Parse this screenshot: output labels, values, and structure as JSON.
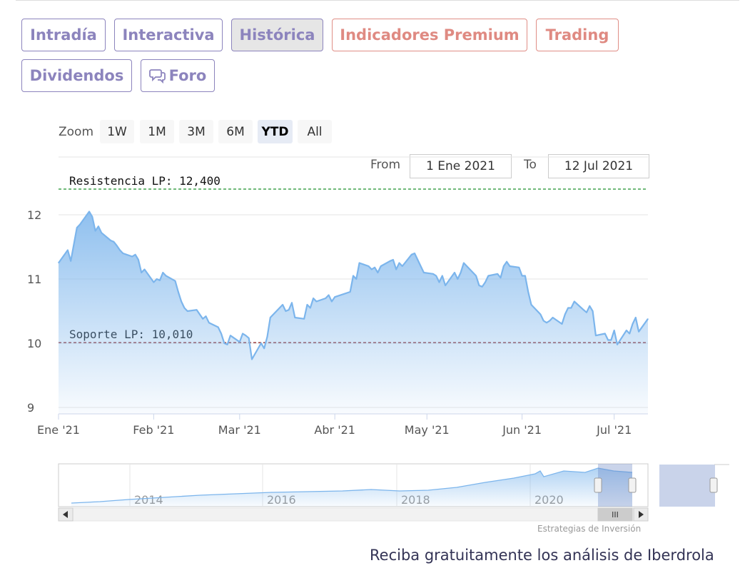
{
  "tabs": {
    "intradia": "Intradía",
    "interactiva": "Interactiva",
    "historica": "Histórica",
    "indicadores": "Indicadores Premium",
    "trading": "Trading",
    "dividendos": "Dividendos",
    "foro": "Foro"
  },
  "zoom": {
    "label": "Zoom",
    "buttons": [
      "1W",
      "1M",
      "3M",
      "6M",
      "YTD",
      "All"
    ],
    "selected": "YTD"
  },
  "range": {
    "from_label": "From",
    "from_value": "1 Ene 2021",
    "to_label": "To",
    "to_value": "12 Jul 2021"
  },
  "colors": {
    "accent_purple": "#8c84bd",
    "accent_salmon": "#df8a82",
    "series_line": "#7cb5ec",
    "resistance_line": "#1a8f2a",
    "support_line": "#8b1a1a"
  },
  "chart_data": {
    "type": "area",
    "xlabel": "",
    "ylabel": "",
    "yticks": [
      9,
      10,
      11,
      12
    ],
    "ylim": [
      8.9,
      12.9
    ],
    "xlim": [
      "2021-01-01",
      "2021-07-12"
    ],
    "xticks": [
      {
        "date": "2021-01-01",
        "label": "Ene '21"
      },
      {
        "date": "2021-02-01",
        "label": "Feb '21"
      },
      {
        "date": "2021-03-01",
        "label": "Mar '21"
      },
      {
        "date": "2021-04-01",
        "label": "Abr '21"
      },
      {
        "date": "2021-05-01",
        "label": "May '21"
      },
      {
        "date": "2021-06-01",
        "label": "Jun '21"
      },
      {
        "date": "2021-07-01",
        "label": "Jul '21"
      }
    ],
    "series": [
      {
        "points": [
          [
            "2021-01-01",
            11.25
          ],
          [
            "2021-01-04",
            11.45
          ],
          [
            "2021-01-05",
            11.28
          ],
          [
            "2021-01-07",
            11.8
          ],
          [
            "2021-01-08",
            11.85
          ],
          [
            "2021-01-11",
            12.05
          ],
          [
            "2021-01-12",
            11.97
          ],
          [
            "2021-01-13",
            11.75
          ],
          [
            "2021-01-14",
            11.82
          ],
          [
            "2021-01-15",
            11.72
          ],
          [
            "2021-01-18",
            11.6
          ],
          [
            "2021-01-19",
            11.58
          ],
          [
            "2021-01-20",
            11.52
          ],
          [
            "2021-01-21",
            11.45
          ],
          [
            "2021-01-22",
            11.4
          ],
          [
            "2021-01-25",
            11.35
          ],
          [
            "2021-01-26",
            11.38
          ],
          [
            "2021-01-27",
            11.3
          ],
          [
            "2021-01-28",
            11.1
          ],
          [
            "2021-01-29",
            11.15
          ],
          [
            "2021-02-01",
            10.95
          ],
          [
            "2021-02-02",
            11.0
          ],
          [
            "2021-02-03",
            10.98
          ],
          [
            "2021-02-04",
            11.1
          ],
          [
            "2021-02-05",
            11.05
          ],
          [
            "2021-02-08",
            10.97
          ],
          [
            "2021-02-09",
            10.8
          ],
          [
            "2021-02-10",
            10.65
          ],
          [
            "2021-02-11",
            10.55
          ],
          [
            "2021-02-12",
            10.5
          ],
          [
            "2021-02-15",
            10.52
          ],
          [
            "2021-02-16",
            10.45
          ],
          [
            "2021-02-17",
            10.38
          ],
          [
            "2021-02-18",
            10.42
          ],
          [
            "2021-02-19",
            10.32
          ],
          [
            "2021-02-22",
            10.25
          ],
          [
            "2021-02-23",
            10.15
          ],
          [
            "2021-02-24",
            10.0
          ],
          [
            "2021-02-25",
            9.98
          ],
          [
            "2021-02-26",
            10.12
          ],
          [
            "2021-03-01",
            10.02
          ],
          [
            "2021-03-02",
            10.15
          ],
          [
            "2021-03-03",
            10.12
          ],
          [
            "2021-03-04",
            10.08
          ],
          [
            "2021-03-05",
            9.75
          ],
          [
            "2021-03-08",
            10.0
          ],
          [
            "2021-03-09",
            9.92
          ],
          [
            "2021-03-10",
            10.1
          ],
          [
            "2021-03-11",
            10.4
          ],
          [
            "2021-03-12",
            10.45
          ],
          [
            "2021-03-15",
            10.6
          ],
          [
            "2021-03-16",
            10.5
          ],
          [
            "2021-03-17",
            10.52
          ],
          [
            "2021-03-18",
            10.63
          ],
          [
            "2021-03-19",
            10.4
          ],
          [
            "2021-03-22",
            10.38
          ],
          [
            "2021-03-23",
            10.6
          ],
          [
            "2021-03-24",
            10.55
          ],
          [
            "2021-03-25",
            10.7
          ],
          [
            "2021-03-26",
            10.65
          ],
          [
            "2021-03-29",
            10.7
          ],
          [
            "2021-03-30",
            10.75
          ],
          [
            "2021-03-31",
            10.65
          ],
          [
            "2021-04-01",
            10.72
          ],
          [
            "2021-04-06",
            10.8
          ],
          [
            "2021-04-07",
            11.05
          ],
          [
            "2021-04-08",
            11.0
          ],
          [
            "2021-04-09",
            11.25
          ],
          [
            "2021-04-12",
            11.2
          ],
          [
            "2021-04-13",
            11.15
          ],
          [
            "2021-04-14",
            11.18
          ],
          [
            "2021-04-15",
            11.1
          ],
          [
            "2021-04-16",
            11.2
          ],
          [
            "2021-04-19",
            11.28
          ],
          [
            "2021-04-20",
            11.3
          ],
          [
            "2021-04-21",
            11.15
          ],
          [
            "2021-04-22",
            11.25
          ],
          [
            "2021-04-23",
            11.2
          ],
          [
            "2021-04-26",
            11.38
          ],
          [
            "2021-04-27",
            11.4
          ],
          [
            "2021-04-28",
            11.3
          ],
          [
            "2021-04-29",
            11.2
          ],
          [
            "2021-04-30",
            11.1
          ],
          [
            "2021-05-03",
            11.08
          ],
          [
            "2021-05-04",
            11.05
          ],
          [
            "2021-05-05",
            10.95
          ],
          [
            "2021-05-06",
            11.05
          ],
          [
            "2021-05-07",
            10.9
          ],
          [
            "2021-05-10",
            11.1
          ],
          [
            "2021-05-11",
            11.0
          ],
          [
            "2021-05-12",
            11.1
          ],
          [
            "2021-05-13",
            11.25
          ],
          [
            "2021-05-14",
            11.2
          ],
          [
            "2021-05-17",
            11.05
          ],
          [
            "2021-05-18",
            10.9
          ],
          [
            "2021-05-19",
            10.88
          ],
          [
            "2021-05-20",
            10.95
          ],
          [
            "2021-05-21",
            11.05
          ],
          [
            "2021-05-24",
            11.08
          ],
          [
            "2021-05-25",
            11.02
          ],
          [
            "2021-05-26",
            11.2
          ],
          [
            "2021-05-27",
            11.27
          ],
          [
            "2021-05-28",
            11.2
          ],
          [
            "2021-05-31",
            11.18
          ],
          [
            "2021-06-01",
            11.05
          ],
          [
            "2021-06-02",
            11.05
          ],
          [
            "2021-06-03",
            10.8
          ],
          [
            "2021-06-04",
            10.6
          ],
          [
            "2021-06-07",
            10.45
          ],
          [
            "2021-06-08",
            10.35
          ],
          [
            "2021-06-09",
            10.32
          ],
          [
            "2021-06-10",
            10.35
          ],
          [
            "2021-06-11",
            10.4
          ],
          [
            "2021-06-14",
            10.3
          ],
          [
            "2021-06-15",
            10.45
          ],
          [
            "2021-06-16",
            10.55
          ],
          [
            "2021-06-17",
            10.55
          ],
          [
            "2021-06-18",
            10.65
          ],
          [
            "2021-06-21",
            10.52
          ],
          [
            "2021-06-22",
            10.48
          ],
          [
            "2021-06-23",
            10.58
          ],
          [
            "2021-06-24",
            10.5
          ],
          [
            "2021-06-25",
            10.12
          ],
          [
            "2021-06-28",
            10.15
          ],
          [
            "2021-06-29",
            10.05
          ],
          [
            "2021-06-30",
            10.05
          ],
          [
            "2021-07-01",
            10.2
          ],
          [
            "2021-07-02",
            9.98
          ],
          [
            "2021-07-05",
            10.2
          ],
          [
            "2021-07-06",
            10.15
          ],
          [
            "2021-07-07",
            10.3
          ],
          [
            "2021-07-08",
            10.4
          ],
          [
            "2021-07-09",
            10.18
          ],
          [
            "2021-07-12",
            10.38
          ]
        ]
      }
    ],
    "plot_lines": [
      {
        "label": "Resistencia LP: 12,400",
        "value": 12.4,
        "color": "#1a8f2a",
        "style": "dashed"
      },
      {
        "label": "Soporte LP: 10,010",
        "value": 10.01,
        "color": "#8b1a1a",
        "style": "dashed"
      }
    ],
    "grid": true,
    "navigator": {
      "labels": [
        "2014",
        "2016",
        "2018",
        "2020"
      ]
    }
  },
  "credits": "Estrategias de Inversión",
  "footer": "Reciba gratuitamente los análisis de Iberdrola"
}
